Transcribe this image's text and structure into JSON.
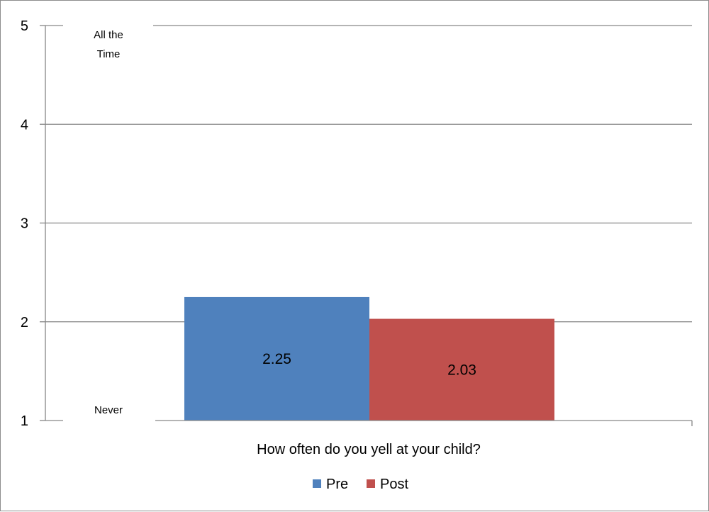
{
  "chart_data": {
    "type": "bar",
    "categories": [
      "How often do you yell at your child?"
    ],
    "series": [
      {
        "name": "Pre",
        "values": [
          2.25
        ],
        "color": "#4f81bd"
      },
      {
        "name": "Post",
        "values": [
          2.03
        ],
        "color": "#c0504d"
      }
    ],
    "data_labels": [
      "2.25",
      "2.03"
    ],
    "title": "",
    "xlabel": "",
    "ylabel": "",
    "ylim": [
      1,
      5
    ],
    "yticks": [
      "1",
      "2",
      "3",
      "4",
      "5"
    ],
    "y_annotations": [
      {
        "value": 5,
        "text_lines": [
          "All the",
          "Time"
        ]
      },
      {
        "value": 1,
        "text_lines": [
          "Never"
        ]
      }
    ],
    "grid": true,
    "legend_position": "bottom",
    "colors": {
      "gridline": "#868686",
      "axis": "#868686"
    }
  }
}
